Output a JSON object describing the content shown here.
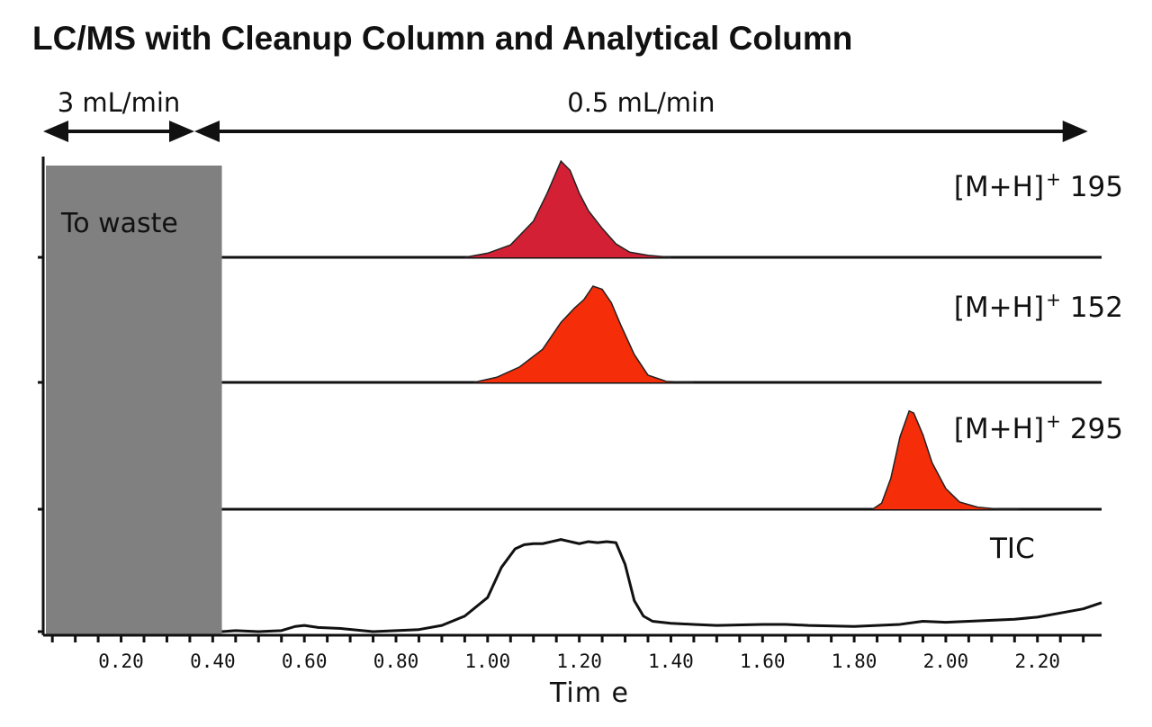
{
  "chart_data": {
    "type": "line",
    "title": "LC/MS with Cleanup Column and Analytical Column",
    "xlabel": "Tim e",
    "xlim": [
      0.03,
      2.34
    ],
    "x_ticks": [
      "0.20",
      "0.40",
      "0.60",
      "0.80",
      "1.00",
      "1.20",
      "1.40",
      "1.60",
      "1.80",
      "2.00",
      "2.20"
    ],
    "x_tick_values": [
      0.2,
      0.4,
      0.6,
      0.8,
      1.0,
      1.2,
      1.4,
      1.6,
      1.8,
      2.0,
      2.2
    ],
    "minor_tick_step": 0.05,
    "grid": false,
    "flow_annotations": [
      {
        "label": "3 mL/min",
        "from": 0.03,
        "to": 0.36
      },
      {
        "label": "0.5 mL/min",
        "from": 0.36,
        "to": 2.31
      }
    ],
    "waste_region": {
      "label": "To waste",
      "from": 0.03,
      "to": 0.42,
      "color": "#808080"
    },
    "series": [
      {
        "name": "[M+H]",
        "sup": "+",
        "mz": "195",
        "color": "#d42035",
        "fill": true,
        "x": [
          0.95,
          1.0,
          1.05,
          1.1,
          1.13,
          1.16,
          1.18,
          1.2,
          1.22,
          1.25,
          1.28,
          1.31,
          1.35,
          1.4
        ],
        "y": [
          0.0,
          0.04,
          0.12,
          0.35,
          0.62,
          0.93,
          0.84,
          0.62,
          0.45,
          0.28,
          0.13,
          0.05,
          0.02,
          0.0
        ]
      },
      {
        "name": "[M+H]",
        "sup": "+",
        "mz": "152",
        "color": "#f52d08",
        "fill": true,
        "x": [
          0.97,
          1.02,
          1.07,
          1.12,
          1.16,
          1.19,
          1.21,
          1.23,
          1.25,
          1.27,
          1.29,
          1.32,
          1.35,
          1.39,
          1.45
        ],
        "y": [
          0.0,
          0.05,
          0.15,
          0.32,
          0.58,
          0.72,
          0.8,
          0.93,
          0.9,
          0.77,
          0.56,
          0.27,
          0.07,
          0.01,
          0.0
        ]
      },
      {
        "name": "[M+H]",
        "sup": "+",
        "mz": "295",
        "color": "#f52d08",
        "fill": true,
        "x": [
          1.84,
          1.86,
          1.88,
          1.9,
          1.92,
          1.93,
          1.95,
          1.97,
          2.0,
          2.03,
          2.07,
          2.12,
          2.16
        ],
        "y": [
          0.0,
          0.06,
          0.3,
          0.7,
          0.95,
          0.93,
          0.72,
          0.45,
          0.2,
          0.07,
          0.02,
          0.0,
          0.0
        ]
      },
      {
        "name": "TIC",
        "color": "#111111",
        "fill": false,
        "x": [
          0.42,
          0.45,
          0.5,
          0.55,
          0.58,
          0.6,
          0.63,
          0.68,
          0.75,
          0.8,
          0.85,
          0.9,
          0.95,
          1.0,
          1.03,
          1.06,
          1.08,
          1.1,
          1.12,
          1.14,
          1.16,
          1.18,
          1.2,
          1.22,
          1.24,
          1.26,
          1.28,
          1.3,
          1.32,
          1.34,
          1.36,
          1.4,
          1.45,
          1.5,
          1.6,
          1.65,
          1.7,
          1.8,
          1.85,
          1.9,
          1.95,
          2.0,
          2.05,
          2.1,
          2.15,
          2.2,
          2.25,
          2.3,
          2.34
        ],
        "y": [
          0.0,
          0.01,
          0.0,
          0.01,
          0.05,
          0.06,
          0.04,
          0.03,
          0.0,
          0.01,
          0.02,
          0.06,
          0.15,
          0.33,
          0.62,
          0.8,
          0.84,
          0.85,
          0.85,
          0.87,
          0.89,
          0.87,
          0.85,
          0.87,
          0.86,
          0.87,
          0.86,
          0.65,
          0.3,
          0.15,
          0.1,
          0.08,
          0.07,
          0.06,
          0.07,
          0.07,
          0.06,
          0.05,
          0.06,
          0.07,
          0.1,
          0.09,
          0.1,
          0.11,
          0.12,
          0.14,
          0.18,
          0.22,
          0.28
        ]
      }
    ]
  }
}
